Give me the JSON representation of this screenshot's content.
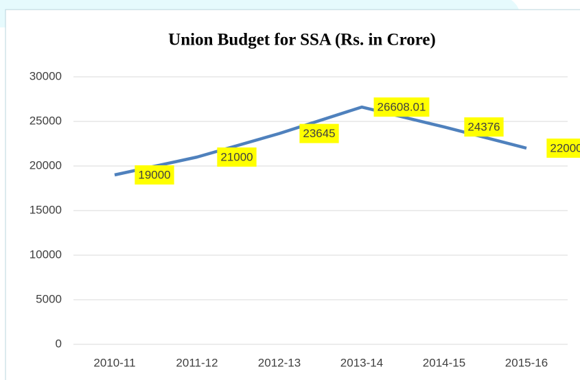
{
  "chart_data": {
    "type": "line",
    "title": "Union Budget for SSA (Rs. in Crore)",
    "categories": [
      "2010-11",
      "2011-12",
      "2012-13",
      "2013-14",
      "2014-15",
      "2015-16"
    ],
    "series": [
      {
        "name": "Union Budget for SSA",
        "color": "#4f81bd",
        "values": [
          19000,
          21000,
          23645,
          26608.01,
          24376,
          22000
        ]
      }
    ],
    "ylim": [
      0,
      30000
    ],
    "yticks": [
      0,
      5000,
      10000,
      15000,
      20000,
      25000,
      30000
    ],
    "grid": true,
    "data_label_color": "#ffff00"
  }
}
